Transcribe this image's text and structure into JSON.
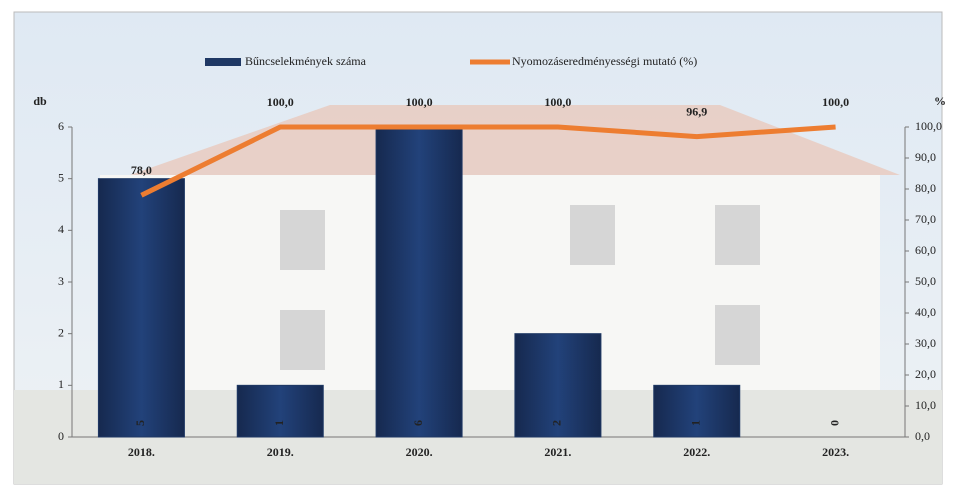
{
  "chart_data": {
    "type": "bar-line",
    "categories": [
      "2018.",
      "2019.",
      "2020.",
      "2021.",
      "2022.",
      "2023."
    ],
    "series": [
      {
        "name": "Bűncselekmények száma",
        "color": "#1f3864",
        "type": "bar",
        "values": [
          5,
          1,
          6,
          2,
          1,
          0
        ]
      },
      {
        "name": "Nyomozáseredményességi mutató (%)",
        "color": "#ed7d31",
        "type": "line",
        "axis": "y2",
        "values": [
          78.0,
          100.0,
          100.0,
          100.0,
          96.9,
          100.0
        ],
        "value_labels": [
          "78,0",
          "100,0",
          "100,0",
          "100,0",
          "96,9",
          "100,0"
        ]
      }
    ],
    "y_label": "db",
    "y2_label": "%",
    "ylim": [
      0,
      6
    ],
    "yticks": [
      0,
      1,
      2,
      3,
      4,
      5,
      6
    ],
    "y2lim": [
      0,
      100
    ],
    "y2ticks": [
      {
        "value": 0,
        "label": "0,0"
      },
      {
        "value": 10,
        "label": "10,0"
      },
      {
        "value": 20,
        "label": "20,0"
      },
      {
        "value": 30,
        "label": "30,0"
      },
      {
        "value": 40,
        "label": "40,0"
      },
      {
        "value": 50,
        "label": "50,0"
      },
      {
        "value": 60,
        "label": "60,0"
      },
      {
        "value": 70,
        "label": "70,0"
      },
      {
        "value": 80,
        "label": "80,0"
      },
      {
        "value": 90,
        "label": "90,0"
      },
      {
        "value": 100,
        "label": "100,0"
      }
    ],
    "legend": "top"
  }
}
